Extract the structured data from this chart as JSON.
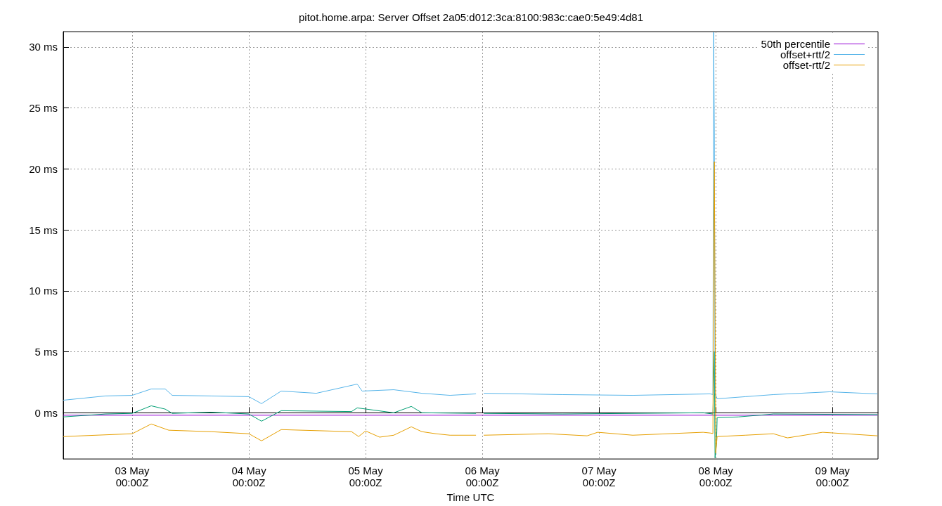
{
  "chart_data": {
    "type": "line",
    "title": "pitot.home.arpa: Server Offset 2a05:d012:3ca:8100:983c:cae0:5e49:4d81",
    "xlabel": "Time UTC",
    "xlim": [
      "--05-02T09:50",
      "--05-09T09:22"
    ],
    "xticks": [
      {
        "value": "--05-03T00:00",
        "label": "03 May\n00:00Z"
      },
      {
        "value": "--05-04T00:00",
        "label": "04 May\n00:00Z"
      },
      {
        "value": "--05-05T00:00",
        "label": "05 May\n00:00Z"
      },
      {
        "value": "--05-06T00:00",
        "label": "06 May\n00:00Z"
      },
      {
        "value": "--05-07T00:00",
        "label": "07 May\n00:00Z"
      },
      {
        "value": "--05-08T00:00",
        "label": "08 May\n00:00Z"
      },
      {
        "value": "--05-09T00:00",
        "label": "09 May\n00:00Z"
      }
    ],
    "ylim": [
      -3.79,
      31.26
    ],
    "yticks": [
      {
        "value": 0,
        "label": "0 ms"
      },
      {
        "value": 5,
        "label": "5 ms"
      },
      {
        "value": 10,
        "label": "10 ms"
      },
      {
        "value": 15,
        "label": "15 ms"
      },
      {
        "value": 20,
        "label": "20 ms"
      },
      {
        "value": 25,
        "label": "25 ms"
      },
      {
        "value": 30,
        "label": "30 ms"
      }
    ],
    "grid": true,
    "legend": "top right",
    "series": [
      {
        "name": "50th percentile",
        "color": "#9400d3",
        "x": [
          "--05-02T09:50",
          "--05-09T09:16"
        ],
        "values": [
          -0.2,
          -0.2
        ]
      },
      {
        "color": "#009e73",
        "x": [
          "--05-02T09:50",
          "--05-02T18:30",
          "--05-03T00:00",
          "--05-03T03:55",
          "--05-03T06:48",
          "--05-03T08:14",
          "--05-03T16:12",
          "--05-04T00:00",
          "--05-04T02:36",
          "--05-04T06:39",
          "--05-04T21:07",
          "--05-04T22:16",
          "--05-05T05:47",
          "--05-05T09:24",
          "--05-05T11:34",
          "--05-05T22:42",
          "--05-05T23:31",
          "--05-06T00:17",
          "--05-06T16:29",
          "--05-07T21:24",
          "--05-07T23:25",
          "--05-07T23:43",
          "--05-07T23:51",
          "--05-08T00:09",
          "--05-08T00:17",
          "--05-08T04:38",
          "--05-08T11:51",
          "--05-09T09:16"
        ],
        "values": [
          -0.34,
          -0.1,
          -0.05,
          0.57,
          0.3,
          -0.05,
          0.05,
          -0.1,
          -0.69,
          0.17,
          0.1,
          0.4,
          0.0,
          0.52,
          0.0,
          -0.05,
          null,
          -0.05,
          -0.1,
          0.0,
          -0.1,
          5.0,
          -3.7,
          -2.5,
          -0.4,
          -0.34,
          -0.1,
          -0.15
        ]
      },
      {
        "name": "offset+rtt/2",
        "color": "#56b4e9",
        "x": [
          "--05-02T09:50",
          "--05-02T18:30",
          "--05-03T00:00",
          "--05-03T03:55",
          "--05-03T06:48",
          "--05-03T08:14",
          "--05-03T16:12",
          "--05-04T00:00",
          "--05-04T02:36",
          "--05-04T06:39",
          "--05-04T13:52",
          "--05-04T22:16",
          "--05-04T23:17",
          "--05-05T05:47",
          "--05-05T11:34",
          "--05-05T17:21",
          "--05-05T22:42",
          "--05-05T23:31",
          "--05-06T00:17",
          "--05-06T16:29",
          "--05-07T06:56",
          "--05-07T22:51",
          "--05-07T23:25",
          "--05-07T23:34",
          "--05-07T23:43",
          "--05-07T23:51",
          "--05-08T00:17",
          "--05-08T06:04",
          "--05-08T11:51",
          "--05-08T23:25",
          "--05-09T09:16"
        ],
        "values": [
          1.03,
          1.38,
          1.43,
          1.95,
          1.95,
          1.43,
          1.38,
          1.32,
          0.75,
          1.78,
          1.6,
          2.35,
          1.78,
          1.89,
          1.6,
          1.43,
          1.55,
          null,
          1.6,
          1.49,
          1.43,
          1.55,
          1.5,
          31.2,
          22.9,
          1.6,
          1.15,
          1.32,
          1.49,
          1.72,
          1.55
        ]
      },
      {
        "name": "offset-rtt/2",
        "color": "#e69f00",
        "x": [
          "--05-02T09:50",
          "--05-03T00:00",
          "--05-03T03:55",
          "--05-03T07:31",
          "--05-03T16:12",
          "--05-04T00:00",
          "--05-04T02:36",
          "--05-04T06:39",
          "--05-04T21:07",
          "--05-04T22:34",
          "--05-05T00:00",
          "--05-05T02:53",
          "--05-05T05:47",
          "--05-05T09:24",
          "--05-05T11:34",
          "--05-05T14:27",
          "--05-05T17:21",
          "--05-05T22:42",
          "--05-05T23:31",
          "--05-06T00:17",
          "--05-06T13:35",
          "--05-06T21:33",
          "--05-06T23:43",
          "--05-07T06:56",
          "--05-07T21:24",
          "--05-07T22:51",
          "--05-07T23:25",
          "--05-07T23:34",
          "--05-07T23:43",
          "--05-08T00:00",
          "--05-08T00:17",
          "--05-08T06:04",
          "--05-08T11:51",
          "--05-08T14:44",
          "--05-08T21:59",
          "--05-09T09:16"
        ],
        "values": [
          -1.95,
          -1.72,
          -0.92,
          -1.43,
          -1.55,
          -1.72,
          -2.3,
          -1.38,
          -1.55,
          -1.95,
          -1.49,
          -2.0,
          -1.84,
          -1.15,
          -1.55,
          -1.72,
          -1.84,
          -1.84,
          null,
          -1.84,
          -1.72,
          -1.89,
          -1.6,
          -1.84,
          -1.6,
          -1.66,
          -1.7,
          14.0,
          20.6,
          -3.3,
          -1.95,
          -1.84,
          -1.72,
          -2.06,
          -1.6,
          -1.89
        ]
      }
    ]
  }
}
